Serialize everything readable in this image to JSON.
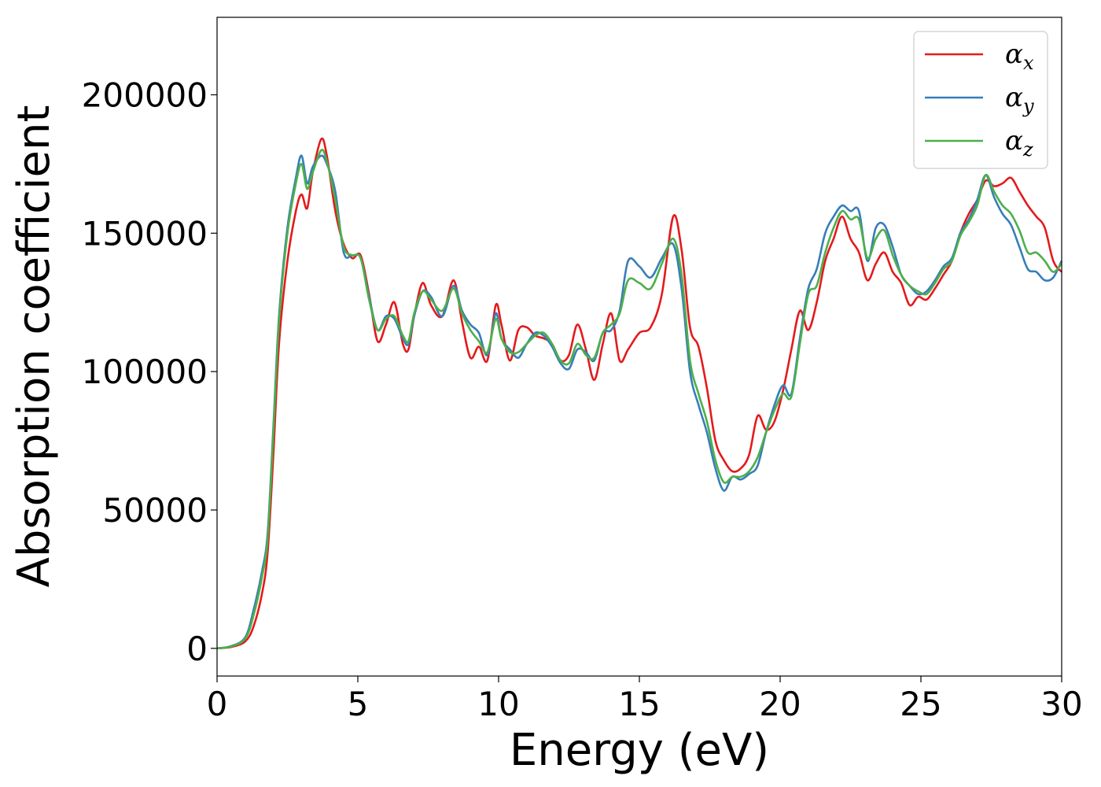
{
  "chart_data": {
    "type": "line",
    "title": "",
    "xlabel": "Energy (eV)",
    "ylabel": "Absorption coefficient",
    "xlim": [
      0,
      30
    ],
    "ylim": [
      -10000,
      228000
    ],
    "xticks": [
      0,
      5,
      10,
      15,
      20,
      25,
      30
    ],
    "yticks": [
      0,
      50000,
      100000,
      150000,
      200000
    ],
    "grid": false,
    "legend_position": "top-right",
    "series": [
      {
        "name": "αx",
        "symbol": "α",
        "subscript": "x",
        "color": "#e41a1c",
        "x": [
          0,
          0.5,
          1,
          1.3,
          1.6,
          1.8,
          2.0,
          2.2,
          2.5,
          2.8,
          3.0,
          3.2,
          3.4,
          3.7,
          3.9,
          4.2,
          4.5,
          4.8,
          5.1,
          5.4,
          5.7,
          6.0,
          6.3,
          6.6,
          6.8,
          7.0,
          7.3,
          7.6,
          8.0,
          8.4,
          8.7,
          9.0,
          9.3,
          9.6,
          9.9,
          10.1,
          10.4,
          10.7,
          11.0,
          11.3,
          11.6,
          11.9,
          12.2,
          12.5,
          12.8,
          13.1,
          13.4,
          13.7,
          14.0,
          14.3,
          14.6,
          15.0,
          15.4,
          15.8,
          16.2,
          16.5,
          16.8,
          17.1,
          17.4,
          17.7,
          18.0,
          18.3,
          18.6,
          18.9,
          19.2,
          19.5,
          19.8,
          20.1,
          20.4,
          20.7,
          21.0,
          21.3,
          21.6,
          21.9,
          22.2,
          22.5,
          22.8,
          23.1,
          23.4,
          23.7,
          24.0,
          24.3,
          24.6,
          24.9,
          25.2,
          25.5,
          25.8,
          26.1,
          26.4,
          26.7,
          27.0,
          27.3,
          27.6,
          27.9,
          28.2,
          28.5,
          28.8,
          29.1,
          29.4,
          29.7,
          30.0
        ],
        "y": [
          0,
          500,
          2500,
          8000,
          20000,
          35000,
          70000,
          110000,
          140000,
          158000,
          164000,
          159000,
          172000,
          184000,
          178000,
          158000,
          146000,
          141000,
          142000,
          128000,
          111000,
          117000,
          125000,
          110000,
          108000,
          120000,
          132000,
          124000,
          120000,
          133000,
          118000,
          105000,
          109000,
          104000,
          124000,
          117000,
          104000,
          115000,
          116000,
          113000,
          112000,
          110000,
          104000,
          106000,
          117000,
          108000,
          97000,
          110000,
          121000,
          104000,
          108000,
          114000,
          116000,
          128000,
          156000,
          144000,
          116000,
          109000,
          94000,
          75000,
          68000,
          64000,
          65000,
          70000,
          84000,
          79000,
          82000,
          93000,
          108000,
          122000,
          115000,
          125000,
          140000,
          148000,
          156000,
          148000,
          143000,
          133000,
          139000,
          143000,
          136000,
          132000,
          124000,
          127000,
          126000,
          130000,
          135000,
          140000,
          150000,
          157000,
          162000,
          169000,
          167000,
          168000,
          170000,
          165000,
          160000,
          156000,
          152000,
          140000,
          136000
        ]
      },
      {
        "name": "αy",
        "symbol": "α",
        "subscript": "y",
        "color": "#377eb8",
        "x": [
          0,
          0.5,
          1,
          1.3,
          1.6,
          1.8,
          2.0,
          2.2,
          2.5,
          2.8,
          3.0,
          3.2,
          3.4,
          3.7,
          3.9,
          4.2,
          4.5,
          4.8,
          5.1,
          5.4,
          5.7,
          6.0,
          6.3,
          6.6,
          6.8,
          7.0,
          7.3,
          7.6,
          8.0,
          8.4,
          8.7,
          9.0,
          9.3,
          9.6,
          9.9,
          10.1,
          10.4,
          10.7,
          11.0,
          11.3,
          11.6,
          11.9,
          12.2,
          12.5,
          12.8,
          13.1,
          13.4,
          13.7,
          14.0,
          14.3,
          14.6,
          15.0,
          15.4,
          15.8,
          16.2,
          16.5,
          16.8,
          17.1,
          17.4,
          17.7,
          18.0,
          18.3,
          18.6,
          18.9,
          19.2,
          19.5,
          19.8,
          20.1,
          20.4,
          20.7,
          21.0,
          21.3,
          21.6,
          21.9,
          22.2,
          22.5,
          22.8,
          23.1,
          23.4,
          23.7,
          24.0,
          24.3,
          24.6,
          24.9,
          25.2,
          25.5,
          25.8,
          26.1,
          26.4,
          26.7,
          27.0,
          27.3,
          27.6,
          27.9,
          28.2,
          28.5,
          28.8,
          29.1,
          29.4,
          29.7,
          30.0
        ],
        "y": [
          0,
          800,
          4000,
          14000,
          28000,
          42000,
          80000,
          120000,
          152000,
          170000,
          178000,
          168000,
          174000,
          178000,
          175000,
          165000,
          143000,
          142000,
          141000,
          127000,
          115000,
          120000,
          119000,
          112000,
          110000,
          120000,
          129000,
          127000,
          120000,
          131000,
          122000,
          117000,
          114000,
          106000,
          121000,
          112000,
          108000,
          105000,
          110000,
          114000,
          113000,
          109000,
          103000,
          101000,
          108000,
          107000,
          104000,
          114000,
          115000,
          122000,
          140000,
          138000,
          134000,
          141000,
          146000,
          130000,
          100000,
          88000,
          78000,
          65000,
          57000,
          62000,
          61000,
          63000,
          66000,
          78000,
          88000,
          95000,
          92000,
          112000,
          130000,
          137000,
          150000,
          156000,
          160000,
          158000,
          158000,
          140000,
          152000,
          153000,
          145000,
          135000,
          131000,
          128000,
          129000,
          133000,
          138000,
          141000,
          150000,
          155000,
          162000,
          171000,
          163000,
          157000,
          153000,
          145000,
          137000,
          136000,
          133000,
          134000,
          140000
        ]
      },
      {
        "name": "αz",
        "symbol": "α",
        "subscript": "z",
        "color": "#4daf4a",
        "x": [
          0,
          0.5,
          1,
          1.3,
          1.6,
          1.8,
          2.0,
          2.2,
          2.5,
          2.8,
          3.0,
          3.2,
          3.4,
          3.7,
          3.9,
          4.2,
          4.5,
          4.8,
          5.1,
          5.4,
          5.7,
          6.0,
          6.3,
          6.6,
          6.8,
          7.0,
          7.3,
          7.6,
          8.0,
          8.4,
          8.7,
          9.0,
          9.3,
          9.6,
          9.9,
          10.1,
          10.4,
          10.7,
          11.0,
          11.3,
          11.6,
          11.9,
          12.2,
          12.5,
          12.8,
          13.1,
          13.4,
          13.7,
          14.0,
          14.3,
          14.6,
          15.0,
          15.4,
          15.8,
          16.2,
          16.5,
          16.8,
          17.1,
          17.4,
          17.7,
          18.0,
          18.3,
          18.6,
          18.9,
          19.2,
          19.5,
          19.8,
          20.1,
          20.4,
          20.7,
          21.0,
          21.3,
          21.6,
          21.9,
          22.2,
          22.5,
          22.8,
          23.1,
          23.4,
          23.7,
          24.0,
          24.3,
          24.6,
          24.9,
          25.2,
          25.5,
          25.8,
          26.1,
          26.4,
          26.7,
          27.0,
          27.3,
          27.6,
          27.9,
          28.2,
          28.5,
          28.8,
          29.1,
          29.4,
          29.7,
          30.0
        ],
        "y": [
          0,
          700,
          3500,
          12000,
          26000,
          40000,
          78000,
          118000,
          150000,
          168000,
          175000,
          166000,
          172000,
          180000,
          176000,
          162000,
          145000,
          142000,
          141000,
          126000,
          115000,
          119000,
          120000,
          113000,
          111000,
          121000,
          129000,
          126000,
          122000,
          130000,
          121000,
          115000,
          111000,
          107000,
          119000,
          112000,
          107000,
          107000,
          110000,
          113000,
          114000,
          110000,
          104000,
          103000,
          110000,
          106000,
          105000,
          114000,
          117000,
          121000,
          133000,
          132000,
          130000,
          139000,
          148000,
          135000,
          104000,
          92000,
          82000,
          68000,
          60000,
          62000,
          62000,
          64000,
          69000,
          78000,
          86000,
          92000,
          91000,
          110000,
          128000,
          131000,
          143000,
          152000,
          158000,
          155000,
          155000,
          141000,
          148000,
          151000,
          142000,
          135000,
          131000,
          129000,
          128000,
          132000,
          137000,
          140000,
          149000,
          154000,
          160000,
          171000,
          165000,
          160000,
          157000,
          151000,
          143000,
          143000,
          140000,
          136000,
          139000
        ]
      }
    ]
  }
}
